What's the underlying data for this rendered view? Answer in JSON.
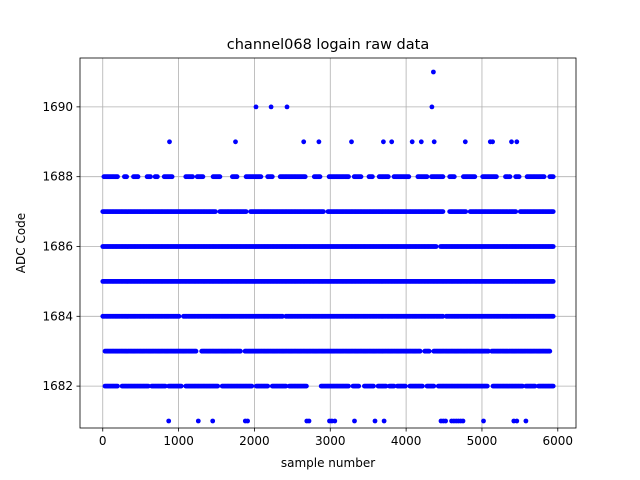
{
  "chart_data": {
    "type": "scatter",
    "title": "channel068 logain raw data",
    "xlabel": "sample number",
    "ylabel": "ADC Code",
    "xlim": [
      -300,
      6240
    ],
    "ylim": [
      1680.8,
      1691.4
    ],
    "xticks": [
      0,
      1000,
      2000,
      3000,
      4000,
      5000,
      6000
    ],
    "yticks": [
      1682,
      1684,
      1686,
      1688,
      1690
    ],
    "grid": true,
    "marker_color": "#0000ff",
    "n_samples": 5950,
    "dense_levels": [
      1682,
      1683,
      1684,
      1685,
      1686,
      1687,
      1688
    ],
    "level_gaps": {
      "1682": [
        [
          0,
          15
        ],
        [
          210,
          240
        ],
        [
          610,
          640
        ],
        [
          830,
          860
        ],
        [
          1040,
          1080
        ],
        [
          1520,
          1560
        ],
        [
          1980,
          2020
        ],
        [
          2190,
          2230
        ],
        [
          2420,
          2450
        ],
        [
          2700,
          2870
        ],
        [
          3250,
          3290
        ],
        [
          3380,
          3440
        ],
        [
          3580,
          3620
        ],
        [
          3740,
          3770
        ],
        [
          3850,
          3880
        ],
        [
          4000,
          4040
        ],
        [
          4220,
          4260
        ],
        [
          4380,
          4420
        ],
        [
          5080,
          5130
        ],
        [
          5540,
          5570
        ],
        [
          5710,
          5740
        ]
      ],
      "1683": [
        [
          0,
          15
        ],
        [
          1240,
          1290
        ],
        [
          1830,
          1870
        ],
        [
          4190,
          4230
        ],
        [
          4320,
          4350
        ],
        [
          5090,
          5120
        ],
        [
          5910,
          5950
        ]
      ],
      "1684": [
        [
          1020,
          1050
        ],
        [
          2380,
          2410
        ],
        [
          4490,
          4520
        ]
      ],
      "1685": [],
      "1686": [
        [
          4410,
          4440
        ]
      ],
      "1687": [
        [
          1500,
          1530
        ],
        [
          1900,
          1940
        ],
        [
          2920,
          2960
        ],
        [
          4490,
          4560
        ],
        [
          4800,
          4830
        ],
        [
          5460,
          5500
        ]
      ],
      "1688": [
        [
          0,
          5
        ],
        [
          210,
          270
        ],
        [
          330,
          400
        ],
        [
          470,
          580
        ],
        [
          640,
          680
        ],
        [
          730,
          800
        ],
        [
          920,
          1080
        ],
        [
          1200,
          1230
        ],
        [
          1330,
          1450
        ],
        [
          1560,
          1700
        ],
        [
          1780,
          1880
        ],
        [
          2090,
          2170
        ],
        [
          2250,
          2330
        ],
        [
          2680,
          2780
        ],
        [
          2880,
          2980
        ],
        [
          3250,
          3300
        ],
        [
          3420,
          3500
        ],
        [
          3560,
          3630
        ],
        [
          3780,
          3830
        ],
        [
          4050,
          4150
        ],
        [
          4280,
          4320
        ],
        [
          4490,
          4560
        ],
        [
          4640,
          4750
        ],
        [
          4910,
          5000
        ],
        [
          5200,
          5300
        ],
        [
          5380,
          5430
        ],
        [
          5500,
          5580
        ],
        [
          5830,
          5880
        ],
        [
          5950,
          5950
        ]
      ]
    },
    "sparse_points": [
      {
        "x": 880,
        "y": 1689
      },
      {
        "x": 1750,
        "y": 1689
      },
      {
        "x": 2650,
        "y": 1689
      },
      {
        "x": 2850,
        "y": 1689
      },
      {
        "x": 3280,
        "y": 1689
      },
      {
        "x": 3700,
        "y": 1689
      },
      {
        "x": 3810,
        "y": 1689
      },
      {
        "x": 4080,
        "y": 1689
      },
      {
        "x": 4200,
        "y": 1689
      },
      {
        "x": 4370,
        "y": 1689
      },
      {
        "x": 4780,
        "y": 1689
      },
      {
        "x": 5110,
        "y": 1689
      },
      {
        "x": 5140,
        "y": 1689
      },
      {
        "x": 5390,
        "y": 1689
      },
      {
        "x": 5460,
        "y": 1689
      },
      {
        "x": 2020,
        "y": 1690
      },
      {
        "x": 2220,
        "y": 1690
      },
      {
        "x": 2430,
        "y": 1690
      },
      {
        "x": 4340,
        "y": 1690
      },
      {
        "x": 4360,
        "y": 1691
      },
      {
        "x": 870,
        "y": 1681
      },
      {
        "x": 1260,
        "y": 1681
      },
      {
        "x": 1450,
        "y": 1681
      },
      {
        "x": 1880,
        "y": 1681
      },
      {
        "x": 1910,
        "y": 1681
      },
      {
        "x": 2690,
        "y": 1681
      },
      {
        "x": 2720,
        "y": 1681
      },
      {
        "x": 2990,
        "y": 1681
      },
      {
        "x": 3020,
        "y": 1681
      },
      {
        "x": 3060,
        "y": 1681
      },
      {
        "x": 3320,
        "y": 1681
      },
      {
        "x": 3590,
        "y": 1681
      },
      {
        "x": 3710,
        "y": 1681
      },
      {
        "x": 4460,
        "y": 1681
      },
      {
        "x": 4490,
        "y": 1681
      },
      {
        "x": 4520,
        "y": 1681
      },
      {
        "x": 4600,
        "y": 1681
      },
      {
        "x": 4630,
        "y": 1681
      },
      {
        "x": 4660,
        "y": 1681
      },
      {
        "x": 4690,
        "y": 1681
      },
      {
        "x": 4720,
        "y": 1681
      },
      {
        "x": 4750,
        "y": 1681
      },
      {
        "x": 5020,
        "y": 1681
      },
      {
        "x": 5420,
        "y": 1681
      },
      {
        "x": 5460,
        "y": 1681
      },
      {
        "x": 5580,
        "y": 1681
      }
    ]
  }
}
